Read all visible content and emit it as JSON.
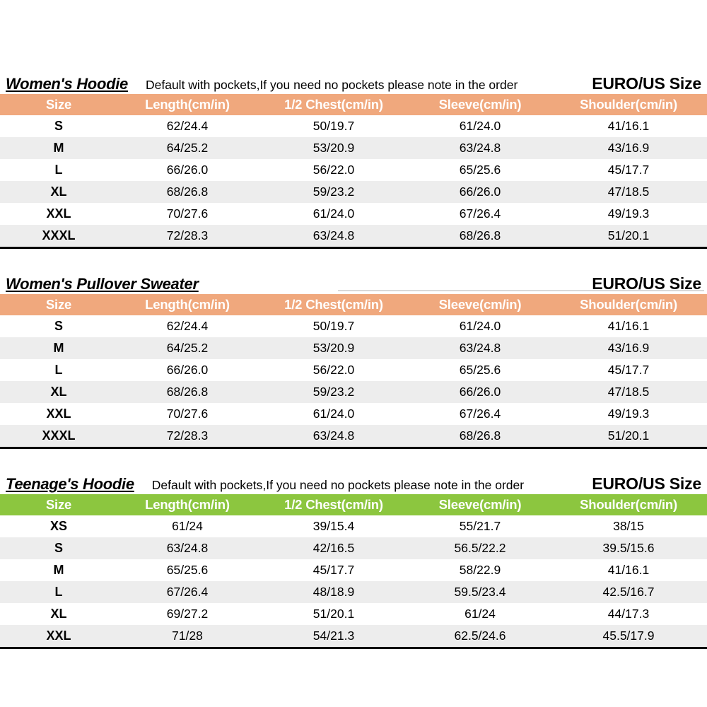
{
  "columns": [
    "Size",
    "Length(cm/in)",
    "1/2 Chest(cm/in)",
    "Sleeve(cm/in)",
    "Shoulder(cm/in)"
  ],
  "colors": {
    "women_header": "#F0A87D",
    "teen_header": "#8CC63F",
    "stripe_row": "#EDEDED",
    "header_text": "#FFFFFF",
    "table_bottom_rule": "#000000"
  },
  "tables": [
    {
      "id": "womens-hoodie",
      "title": "Women's Hoodie",
      "note": "Default with pockets,If you need no pockets please note in the order",
      "size_standard": "EURO/US Size",
      "header_color": "#F0A87D",
      "rows": [
        [
          "S",
          "62/24.4",
          "50/19.7",
          "61/24.0",
          "41/16.1"
        ],
        [
          "M",
          "64/25.2",
          "53/20.9",
          "63/24.8",
          "43/16.9"
        ],
        [
          "L",
          "66/26.0",
          "56/22.0",
          "65/25.6",
          "45/17.7"
        ],
        [
          "XL",
          "68/26.8",
          "59/23.2",
          "66/26.0",
          "47/18.5"
        ],
        [
          "XXL",
          "70/27.6",
          "61/24.0",
          "67/26.4",
          "49/19.3"
        ],
        [
          "XXXL",
          "72/28.3",
          "63/24.8",
          "68/26.8",
          "51/20.1"
        ]
      ]
    },
    {
      "id": "womens-pullover-sweater",
      "title": "Women's Pullover Sweater",
      "note": "",
      "size_standard": "EURO/US Size",
      "header_color": "#F0A87D",
      "rows": [
        [
          "S",
          "62/24.4",
          "50/19.7",
          "61/24.0",
          "41/16.1"
        ],
        [
          "M",
          "64/25.2",
          "53/20.9",
          "63/24.8",
          "43/16.9"
        ],
        [
          "L",
          "66/26.0",
          "56/22.0",
          "65/25.6",
          "45/17.7"
        ],
        [
          "XL",
          "68/26.8",
          "59/23.2",
          "66/26.0",
          "47/18.5"
        ],
        [
          "XXL",
          "70/27.6",
          "61/24.0",
          "67/26.4",
          "49/19.3"
        ],
        [
          "XXXL",
          "72/28.3",
          "63/24.8",
          "68/26.8",
          "51/20.1"
        ]
      ]
    },
    {
      "id": "teenages-hoodie",
      "title": "Teenage's Hoodie",
      "note": "Default with pockets,If you need no pockets please note in the order",
      "size_standard": "EURO/US Size",
      "header_color": "#8CC63F",
      "rows": [
        [
          "XS",
          "61/24",
          "39/15.4",
          "55/21.7",
          "38/15"
        ],
        [
          "S",
          "63/24.8",
          "42/16.5",
          "56.5/22.2",
          "39.5/15.6"
        ],
        [
          "M",
          "65/25.6",
          "45/17.7",
          "58/22.9",
          "41/16.1"
        ],
        [
          "L",
          "67/26.4",
          "48/18.9",
          "59.5/23.4",
          "42.5/16.7"
        ],
        [
          "XL",
          "69/27.2",
          "51/20.1",
          "61/24",
          "44/17.3"
        ],
        [
          "XXL",
          "71/28",
          "54/21.3",
          "62.5/24.6",
          "45.5/17.9"
        ]
      ]
    }
  ]
}
